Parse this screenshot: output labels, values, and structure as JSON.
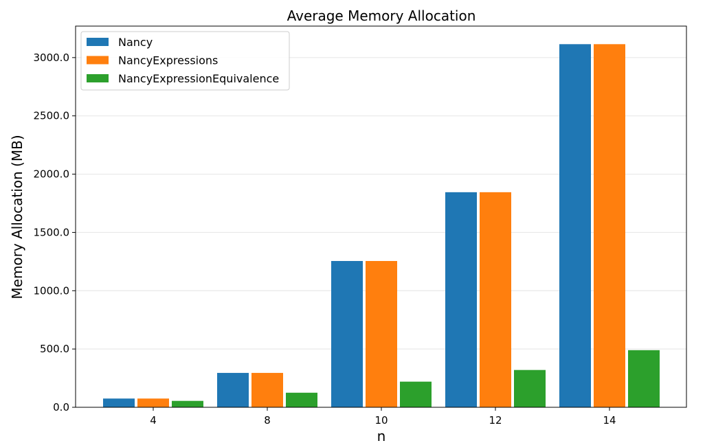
{
  "chart_data": {
    "type": "bar",
    "title": "Average Memory Allocation",
    "xlabel": "n",
    "ylabel": "Memory Allocation (MB)",
    "categories": [
      "4",
      "8",
      "10",
      "12",
      "14"
    ],
    "series": [
      {
        "name": "Nancy",
        "color": "#1f77b4",
        "values": [
          75,
          295,
          1255,
          1845,
          3115
        ]
      },
      {
        "name": "NancyExpressions",
        "color": "#ff7f0e",
        "values": [
          75,
          295,
          1255,
          1845,
          3115
        ]
      },
      {
        "name": "NancyExpressionEquivalence",
        "color": "#2ca02c",
        "values": [
          55,
          125,
          220,
          320,
          490
        ]
      }
    ],
    "ylim": [
      0,
      3270
    ],
    "yticks": [
      0,
      500,
      1000,
      1500,
      2000,
      2500,
      3000
    ],
    "ytick_labels": [
      "0.0",
      "500.0",
      "1000.0",
      "1500.0",
      "2000.0",
      "2500.0",
      "3000.0"
    ],
    "grid": "horizontal",
    "legend_position": "top-left"
  }
}
